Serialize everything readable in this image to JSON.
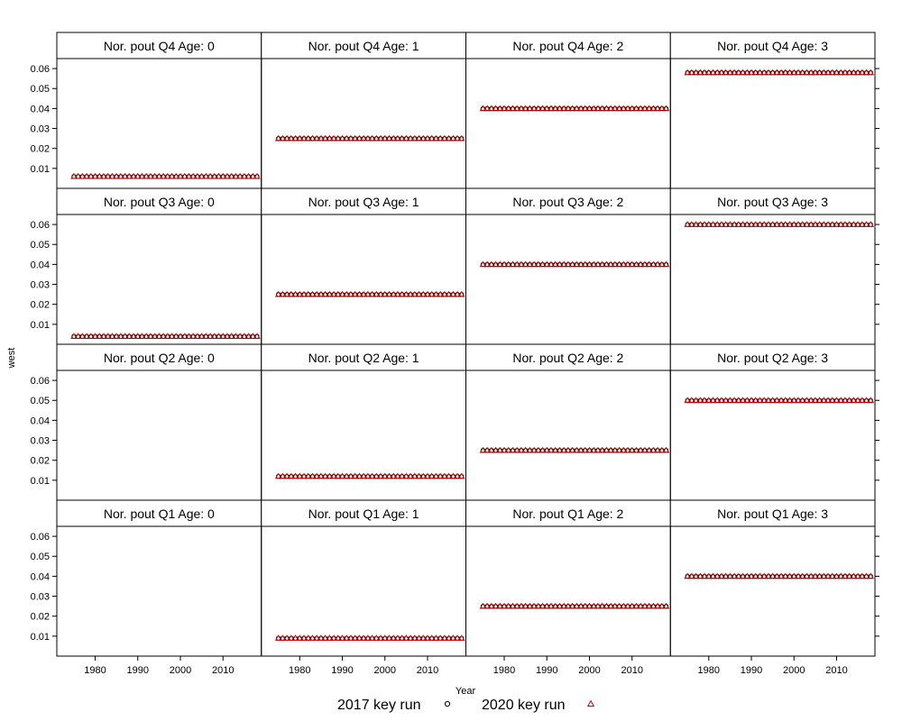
{
  "chart_data": {
    "type": "scatter",
    "xlabel": "Year",
    "ylabel": "west",
    "x_ticks": [
      1980,
      1990,
      2000,
      2010
    ],
    "y_ticks": [
      0.01,
      0.02,
      0.03,
      0.04,
      0.05,
      0.06
    ],
    "y_tick_labels": [
      "0.01",
      "0.02",
      "0.03",
      "0.04",
      "0.05",
      "0.06"
    ],
    "xlim": [
      1971,
      2019
    ],
    "ylim": [
      0.0,
      0.065
    ],
    "years": [
      1975,
      2018
    ],
    "legend": {
      "placement": "bottom",
      "entries": [
        {
          "label": "2017 key run",
          "marker": "circle",
          "color": "#000000"
        },
        {
          "label": "2020 key run",
          "marker": "triangle",
          "color": "#cc0000"
        }
      ]
    },
    "panels": [
      {
        "title": "Nor. pout Q4 Age: 0",
        "row": 0,
        "col": 0,
        "value": 0.006
      },
      {
        "title": "Nor. pout Q4 Age: 1",
        "row": 0,
        "col": 1,
        "value": 0.025
      },
      {
        "title": "Nor. pout Q4 Age: 2",
        "row": 0,
        "col": 2,
        "value": 0.04
      },
      {
        "title": "Nor. pout Q4 Age: 3",
        "row": 0,
        "col": 3,
        "value": 0.058
      },
      {
        "title": "Nor. pout Q3 Age: 0",
        "row": 1,
        "col": 0,
        "value": 0.004
      },
      {
        "title": "Nor. pout Q3 Age: 1",
        "row": 1,
        "col": 1,
        "value": 0.025
      },
      {
        "title": "Nor. pout Q3 Age: 2",
        "row": 1,
        "col": 2,
        "value": 0.04
      },
      {
        "title": "Nor. pout Q3 Age: 3",
        "row": 1,
        "col": 3,
        "value": 0.06
      },
      {
        "title": "Nor. pout Q2 Age: 0",
        "row": 2,
        "col": 0,
        "value": null
      },
      {
        "title": "Nor. pout Q2 Age: 1",
        "row": 2,
        "col": 1,
        "value": 0.012
      },
      {
        "title": "Nor. pout Q2 Age: 2",
        "row": 2,
        "col": 2,
        "value": 0.025
      },
      {
        "title": "Nor. pout Q2 Age: 3",
        "row": 2,
        "col": 3,
        "value": 0.05
      },
      {
        "title": "Nor. pout Q1 Age: 0",
        "row": 3,
        "col": 0,
        "value": null
      },
      {
        "title": "Nor. pout Q1 Age: 1",
        "row": 3,
        "col": 1,
        "value": 0.009
      },
      {
        "title": "Nor. pout Q1 Age: 2",
        "row": 3,
        "col": 2,
        "value": 0.025
      },
      {
        "title": "Nor. pout Q1 Age: 3",
        "row": 3,
        "col": 3,
        "value": 0.04
      }
    ]
  }
}
